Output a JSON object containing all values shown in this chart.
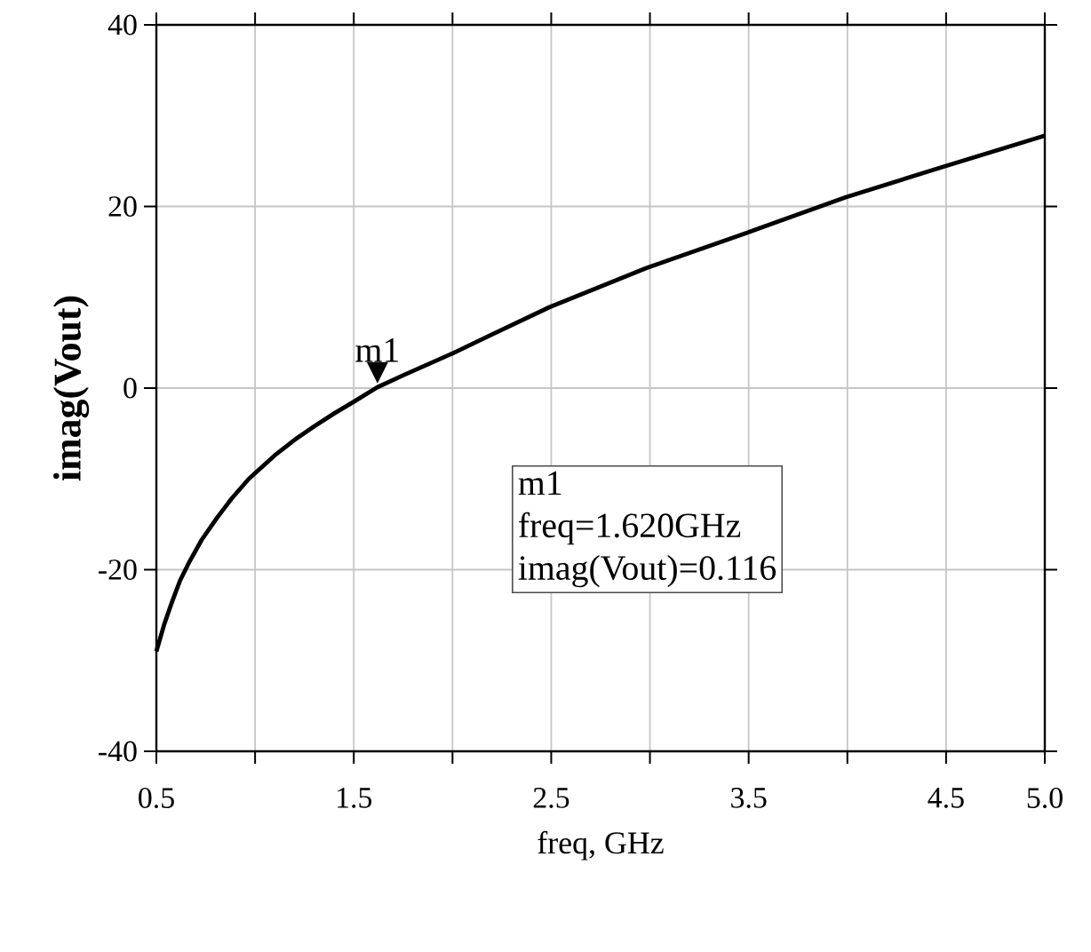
{
  "chart_data": {
    "type": "line",
    "xlabel": "freq, GHz",
    "ylabel": "imag(Vout)",
    "x": [
      0.5,
      0.54,
      0.58,
      0.62,
      0.668,
      0.73,
      0.8,
      0.88,
      0.968,
      1.1,
      1.2,
      1.3,
      1.4,
      1.5,
      1.62,
      1.75,
      1.988,
      2.2,
      2.49,
      2.98,
      3.49,
      3.99,
      4.49,
      5.0
    ],
    "series": [
      {
        "color": "#000000",
        "values": [
          -29,
          -26,
          -23.5,
          -21.2,
          -19.1,
          -16.7,
          -14.5,
          -12.2,
          -10,
          -7.4,
          -5.7,
          -4.2,
          -2.8,
          -1.5,
          0.1,
          1.4,
          3.7,
          5.9,
          8.9,
          13.2,
          17.1,
          21,
          24.4,
          27.8
        ]
      }
    ],
    "xlim": [
      0.5,
      5.0
    ],
    "ylim": [
      -40,
      40
    ],
    "xticks": [
      0.5,
      {
        "value": 1.0,
        "label": null
      },
      1.5,
      {
        "value": 2.0,
        "label": null
      },
      2.5,
      {
        "value": 3.0,
        "label": null
      },
      3.5,
      {
        "value": 4.0,
        "label": null
      },
      4.5,
      {
        "value": 5,
        "label": "5.0"
      }
    ],
    "yticks": [
      -40,
      -20,
      0,
      20,
      40
    ],
    "grid": true,
    "annotations": [
      {
        "text": "m1",
        "x": 1.62,
        "y": 0.116
      },
      "m1",
      "freq=1.620GHz",
      "imag(Vout)=0.116"
    ]
  }
}
